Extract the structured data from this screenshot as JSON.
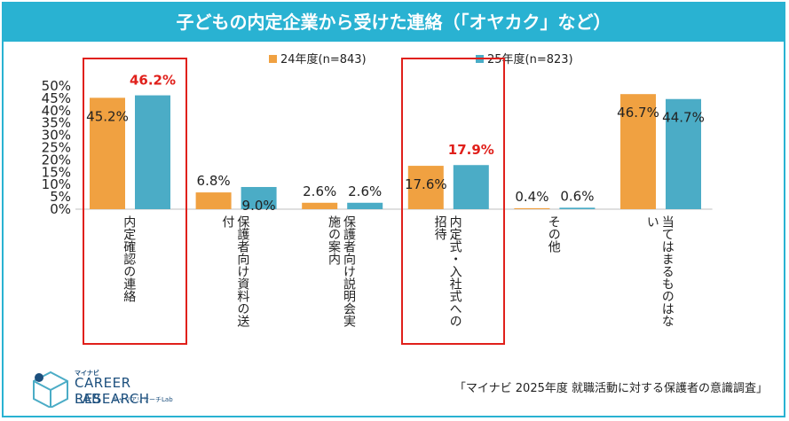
{
  "title": "子どもの内定企業から受けた連絡（「オヤカク」など）",
  "source": "「マイナビ 2025年度 就職活動に対する保護者の意識調査」",
  "logo": {
    "small": "マイナビ",
    "main": "CAREER RESEARCH",
    "lab": "LAB",
    "sub": "キャリアリサーチLab"
  },
  "colors": {
    "s24": "#f0a141",
    "s25": "#4bacc6",
    "highlight": "#e0201b",
    "accent": "#29b2d2"
  },
  "chart_data": {
    "type": "bar",
    "categories": [
      "内定確認の連絡",
      "保護者向け資料の送付",
      "保護者向け説明会実施の案内",
      "内定式・入社式への招待",
      "その他",
      "当てはまるものはない"
    ],
    "series": [
      {
        "name": "24年度(n=843)",
        "values": [
          45.2,
          6.8,
          2.6,
          17.6,
          0.4,
          46.7
        ]
      },
      {
        "name": "25年度(n=823)",
        "values": [
          46.2,
          9.0,
          2.6,
          17.9,
          0.6,
          44.7
        ]
      }
    ],
    "ylim": [
      0,
      50
    ],
    "yticks": [
      "0%",
      "5%",
      "10%",
      "15%",
      "20%",
      "25%",
      "30%",
      "35%",
      "40%",
      "45%",
      "50%"
    ],
    "value_labels": {
      "s24": [
        "45.2%",
        "6.8%",
        "2.6%",
        "17.6%",
        "0.4%",
        "46.7%"
      ],
      "s25": [
        "46.2%",
        "9.0%",
        "2.6%",
        "17.9%",
        "0.6%",
        "44.7%"
      ]
    },
    "highlighted_categories": [
      0,
      3
    ],
    "legend_position": "top"
  }
}
